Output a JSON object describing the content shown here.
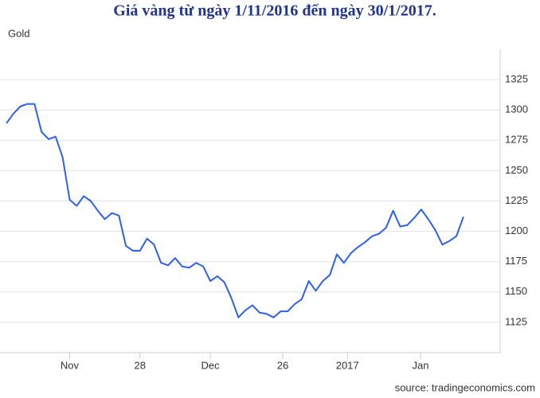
{
  "chart_data": {
    "type": "line",
    "title": "Giá vàng từ ngày 1/11/2016 đến ngày 30/1/2017.",
    "source": "source: tradingeconomics.com",
    "x": [
      0,
      1,
      2,
      3,
      4,
      5,
      6,
      7,
      8,
      9,
      10,
      11,
      12,
      13,
      14,
      15,
      16,
      17,
      18,
      19,
      20,
      21,
      22,
      23,
      24,
      25,
      26,
      27,
      28,
      29,
      30,
      31,
      32,
      33,
      34,
      35,
      36,
      37,
      38,
      39,
      40,
      41,
      42,
      43,
      44,
      45,
      46,
      47,
      48,
      49,
      50,
      51,
      52,
      53,
      54,
      55,
      56,
      57,
      58,
      59,
      60,
      61,
      62,
      63,
      64,
      65
    ],
    "series": [
      {
        "name": "Gold",
        "color": "#2d5ff0",
        "values": [
          1289,
          1297,
          1303,
          1305,
          1305,
          1282,
          1276,
          1278,
          1261,
          1226,
          1221,
          1229,
          1225,
          1217,
          1210,
          1215,
          1213,
          1188,
          1184,
          1184,
          1194,
          1189,
          1174,
          1172,
          1178,
          1171,
          1170,
          1174,
          1171,
          1159,
          1163,
          1158,
          1145,
          1129,
          1135,
          1139,
          1133,
          1132,
          1129,
          1134,
          1134,
          1140,
          1144,
          1159,
          1151,
          1159,
          1164,
          1181,
          1174,
          1182,
          1187,
          1191,
          1196,
          1198,
          1203,
          1217,
          1204,
          1205,
          1211,
          1218,
          1210,
          1201,
          1189,
          1192,
          1196,
          1212
        ]
      }
    ],
    "xlim": [
      0,
      70
    ],
    "xticks": [
      {
        "value": 9,
        "label": "Nov"
      },
      {
        "value": 19,
        "label": "28"
      },
      {
        "value": 29,
        "label": "Dec"
      },
      {
        "value": 39.3,
        "label": "26"
      },
      {
        "value": 48.5,
        "label": "2017"
      },
      {
        "value": 58.9,
        "label": "Jan"
      }
    ],
    "ylim": [
      1100,
      1350
    ],
    "yticks": [
      1125,
      1150,
      1175,
      1200,
      1225,
      1250,
      1275,
      1300,
      1325
    ],
    "grid": true
  }
}
